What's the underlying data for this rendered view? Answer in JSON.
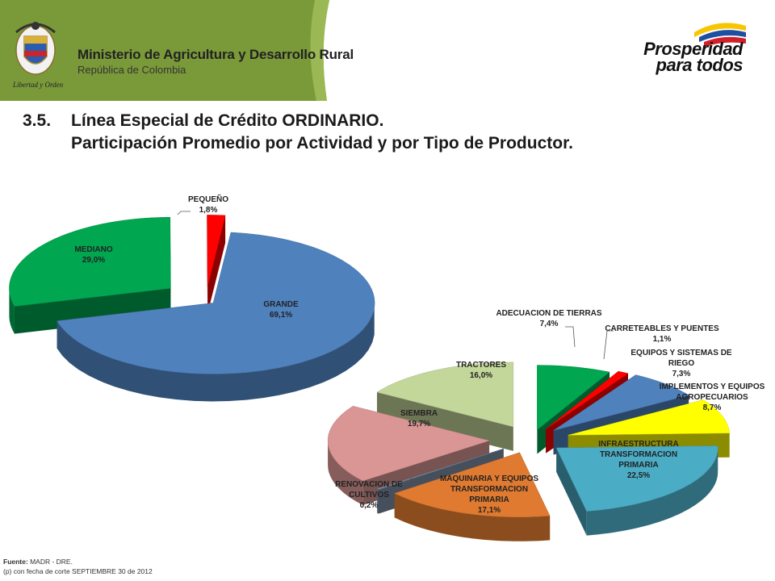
{
  "header": {
    "ministry": "Ministerio de Agricultura y Desarrollo Rural",
    "country": "República de Colombia",
    "motto": "Libertad y Orden",
    "slogan_line1": "Prosperidad",
    "slogan_line2": "para todos",
    "colors": {
      "band": "#7a9a3a",
      "band_light": "#a8c060"
    }
  },
  "slide": {
    "number": "3.5.",
    "title_line1": "Línea Especial de Crédito ORDINARIO.",
    "title_line2": "Participación Promedio por Actividad y por Tipo de Productor."
  },
  "chart_data": [
    {
      "type": "pie",
      "title": "",
      "labels": [
        "GRANDE",
        "MEDIANO",
        "PEQUEÑO"
      ],
      "values": [
        69.1,
        29.0,
        1.8
      ],
      "value_labels": [
        "69,1%",
        "29,0%",
        "1,8%"
      ],
      "colors": [
        "#4f81bd",
        "#00a650",
        "#ff0000"
      ],
      "exploded": true,
      "three_d": true
    },
    {
      "type": "pie",
      "title": "",
      "labels": [
        "ADECUACION DE TIERRAS",
        "CARRETEABLES Y PUENTES",
        "EQUIPOS Y SISTEMAS DE RIEGO",
        "IMPLEMENTOS Y EQUIPOS AGROPECUARIOS",
        "INFRAESTRUCTURA TRANSFORMACION PRIMARIA",
        "MAQUINARIA Y EQUIPOS TRANSFORMACION PRIMARIA",
        "RENOVACION DE CULTIVOS",
        "SIEMBRA",
        "TRACTORES"
      ],
      "values": [
        7.4,
        1.1,
        7.3,
        8.7,
        22.5,
        17.1,
        0.2,
        19.7,
        16.0
      ],
      "value_labels": [
        "7,4%",
        "1,1%",
        "7,3%",
        "8,7%",
        "22,5%",
        "17,1%",
        "0,2%",
        "19,7%",
        "16,0%"
      ],
      "colors": [
        "#00a650",
        "#ff0000",
        "#4f81bd",
        "#ffff00",
        "#4bacc6",
        "#e07a30",
        "#7f8fa8",
        "#d99694",
        "#c4d79b"
      ],
      "exploded": true,
      "three_d": true
    }
  ],
  "footer": {
    "source_label": "Fuente:",
    "source_value": "MADR - DRE.",
    "note": "(p) con fecha de corte SEPTIEMBRE 30 de 2012"
  }
}
